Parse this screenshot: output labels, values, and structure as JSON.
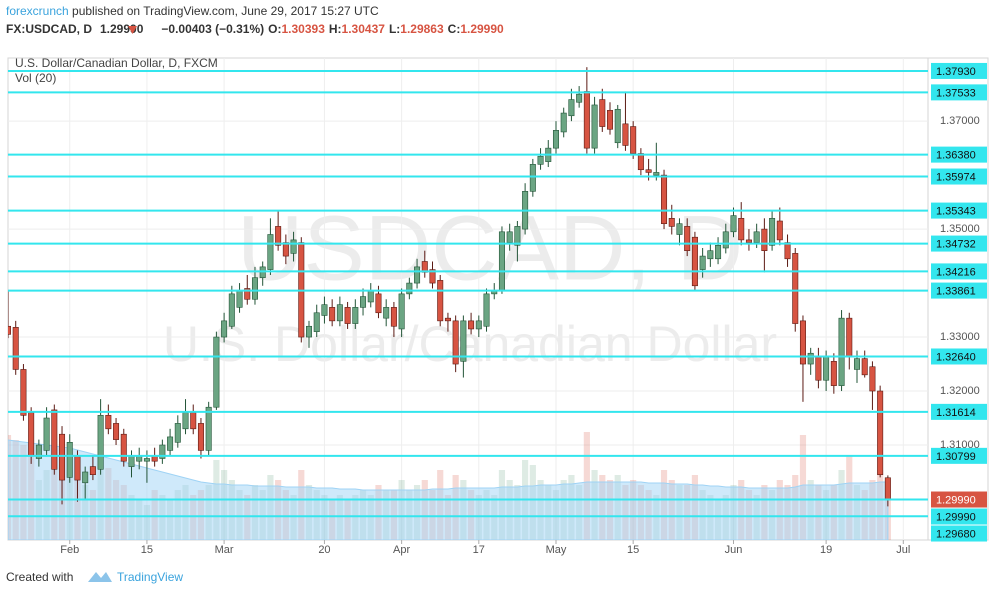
{
  "header": {
    "author": "forexcrunch",
    "published": " published on TradingView.com, June 29, 2017 15:27 UTC",
    "symbol": "FX:USDCAD, D",
    "last": "1.29990",
    "change": "−0.00403 (−0.31%)",
    "open": {
      "label": "O:",
      "value": "1.30393"
    },
    "high": {
      "label": "H:",
      "value": "1.30437"
    },
    "low": {
      "label": "L:",
      "value": "1.29863"
    },
    "close": {
      "label": "C:",
      "value": "1.29990"
    }
  },
  "chart_data": {
    "type": "candlestick",
    "title": "U.S. Dollar/Canadian Dollar, D, FXCM",
    "volume_title": "Vol (20)",
    "watermark": "USDCAD, D",
    "watermark_subtitle": "U.S. Dollar/Canadian Dollar",
    "ylim": [
      1.2924,
      1.3817
    ],
    "yticks": [
      {
        "value": 1.31,
        "label": "1.31000"
      },
      {
        "value": 1.32,
        "label": "1.32000"
      },
      {
        "value": 1.33,
        "label": "1.33000"
      },
      {
        "value": 1.35,
        "label": "1.35000"
      },
      {
        "value": 1.37,
        "label": "1.37000"
      }
    ],
    "xlim": [
      0,
      119.2
    ],
    "xticks": [
      {
        "value": 8,
        "label": "Feb"
      },
      {
        "value": 18,
        "label": "15"
      },
      {
        "value": 28,
        "label": "Mar"
      },
      {
        "value": 41,
        "label": "20"
      },
      {
        "value": 51,
        "label": "Apr"
      },
      {
        "value": 61,
        "label": "17"
      },
      {
        "value": 71,
        "label": "May"
      },
      {
        "value": 81,
        "label": "15"
      },
      {
        "value": 94,
        "label": "Jun"
      },
      {
        "value": 106,
        "label": "19"
      },
      {
        "value": 116,
        "label": "Jul"
      }
    ],
    "grid": true,
    "up_color": "#6ba583",
    "down_color": "#d75442",
    "level_color": "#33e6ee",
    "volume_ma_color": "#9fd3f5",
    "ohlc": [
      [
        1.332,
        1.3385,
        1.3298,
        1.3305
      ],
      [
        1.3318,
        1.333,
        1.323,
        1.324
      ],
      [
        1.324,
        1.325,
        1.3145,
        1.3155
      ],
      [
        1.316,
        1.317,
        1.3065,
        1.308
      ],
      [
        1.3075,
        1.311,
        1.306,
        1.31
      ],
      [
        1.309,
        1.317,
        1.308,
        1.315
      ],
      [
        1.3165,
        1.3175,
        1.3045,
        1.3055
      ],
      [
        1.312,
        1.3135,
        1.299,
        1.3035
      ],
      [
        1.304,
        1.312,
        1.303,
        1.3105
      ],
      [
        1.308,
        1.309,
        1.2995,
        1.3035
      ],
      [
        1.303,
        1.306,
        1.3,
        1.305
      ],
      [
        1.306,
        1.308,
        1.3035,
        1.3045
      ],
      [
        1.3055,
        1.3185,
        1.3045,
        1.3155
      ],
      [
        1.3155,
        1.3175,
        1.312,
        1.313
      ],
      [
        1.314,
        1.315,
        1.31,
        1.311
      ],
      [
        1.312,
        1.313,
        1.306,
        1.307
      ],
      [
        1.306,
        1.309,
        1.304,
        1.308
      ],
      [
        1.307,
        1.3095,
        1.3055,
        1.308
      ],
      [
        1.307,
        1.309,
        1.303,
        1.3075
      ],
      [
        1.308,
        1.3095,
        1.306,
        1.307
      ],
      [
        1.3075,
        1.311,
        1.3065,
        1.31
      ],
      [
        1.309,
        1.313,
        1.308,
        1.3115
      ],
      [
        1.3105,
        1.3155,
        1.3095,
        1.314
      ],
      [
        1.313,
        1.3185,
        1.312,
        1.316
      ],
      [
        1.316,
        1.3175,
        1.312,
        1.313
      ],
      [
        1.314,
        1.315,
        1.3075,
        1.309
      ],
      [
        1.309,
        1.318,
        1.308,
        1.317
      ],
      [
        1.317,
        1.331,
        1.3165,
        1.33
      ],
      [
        1.33,
        1.3345,
        1.329,
        1.333
      ],
      [
        1.332,
        1.3395,
        1.3315,
        1.338
      ],
      [
        1.3355,
        1.34,
        1.3345,
        1.3385
      ],
      [
        1.339,
        1.3415,
        1.336,
        1.337
      ],
      [
        1.337,
        1.343,
        1.336,
        1.341
      ],
      [
        1.341,
        1.344,
        1.3395,
        1.343
      ],
      [
        1.3425,
        1.352,
        1.3415,
        1.349
      ],
      [
        1.3505,
        1.3535,
        1.346,
        1.347
      ],
      [
        1.3475,
        1.349,
        1.3435,
        1.345
      ],
      [
        1.3455,
        1.3495,
        1.344,
        1.348
      ],
      [
        1.3475,
        1.3485,
        1.329,
        1.33
      ],
      [
        1.33,
        1.333,
        1.328,
        1.332
      ],
      [
        1.331,
        1.336,
        1.33,
        1.3345
      ],
      [
        1.334,
        1.3375,
        1.3325,
        1.336
      ],
      [
        1.3355,
        1.337,
        1.332,
        1.333
      ],
      [
        1.333,
        1.3375,
        1.332,
        1.336
      ],
      [
        1.3355,
        1.3365,
        1.3315,
        1.3325
      ],
      [
        1.3325,
        1.337,
        1.3315,
        1.3355
      ],
      [
        1.3355,
        1.339,
        1.334,
        1.3375
      ],
      [
        1.3365,
        1.34,
        1.3355,
        1.3385
      ],
      [
        1.338,
        1.3395,
        1.3335,
        1.3345
      ],
      [
        1.3335,
        1.337,
        1.332,
        1.3355
      ],
      [
        1.3355,
        1.3365,
        1.33,
        1.332
      ],
      [
        1.3315,
        1.339,
        1.33,
        1.338
      ],
      [
        1.338,
        1.341,
        1.337,
        1.34
      ],
      [
        1.34,
        1.3445,
        1.339,
        1.343
      ],
      [
        1.344,
        1.346,
        1.341,
        1.342
      ],
      [
        1.3425,
        1.344,
        1.339,
        1.34
      ],
      [
        1.3405,
        1.3415,
        1.332,
        1.333
      ],
      [
        1.3335,
        1.3345,
        1.331,
        1.333
      ],
      [
        1.333,
        1.334,
        1.3235,
        1.325
      ],
      [
        1.3255,
        1.334,
        1.3225,
        1.333
      ],
      [
        1.333,
        1.3345,
        1.3305,
        1.3315
      ],
      [
        1.3315,
        1.334,
        1.33,
        1.333
      ],
      [
        1.332,
        1.339,
        1.331,
        1.338
      ],
      [
        1.338,
        1.34,
        1.337,
        1.3385
      ],
      [
        1.3385,
        1.3505,
        1.338,
        1.3495
      ],
      [
        1.3475,
        1.351,
        1.346,
        1.3495
      ],
      [
        1.347,
        1.3515,
        1.344,
        1.3505
      ],
      [
        1.35,
        1.3585,
        1.349,
        1.357
      ],
      [
        1.357,
        1.363,
        1.356,
        1.362
      ],
      [
        1.362,
        1.365,
        1.361,
        1.3635
      ],
      [
        1.3625,
        1.3665,
        1.3615,
        1.365
      ],
      [
        1.365,
        1.37,
        1.364,
        1.3683
      ],
      [
        1.368,
        1.3725,
        1.367,
        1.3715
      ],
      [
        1.371,
        1.376,
        1.37,
        1.374
      ],
      [
        1.3735,
        1.3765,
        1.3725,
        1.375
      ],
      [
        1.3755,
        1.38,
        1.364,
        1.365
      ],
      [
        1.365,
        1.3745,
        1.364,
        1.373
      ],
      [
        1.374,
        1.376,
        1.368,
        1.369
      ],
      [
        1.372,
        1.3735,
        1.3675,
        1.3685
      ],
      [
        1.366,
        1.373,
        1.365,
        1.3722
      ],
      [
        1.3695,
        1.3755,
        1.3645,
        1.3655
      ],
      [
        1.369,
        1.37,
        1.363,
        1.364
      ],
      [
        1.364,
        1.365,
        1.36,
        1.361
      ],
      [
        1.361,
        1.363,
        1.359,
        1.3605
      ],
      [
        1.36,
        1.366,
        1.359,
        1.3605
      ],
      [
        1.36,
        1.361,
        1.35,
        1.351
      ],
      [
        1.352,
        1.3545,
        1.349,
        1.3505
      ],
      [
        1.349,
        1.352,
        1.347,
        1.351
      ],
      [
        1.3505,
        1.352,
        1.345,
        1.346
      ],
      [
        1.3485,
        1.3495,
        1.3385,
        1.3395
      ],
      [
        1.3425,
        1.3465,
        1.341,
        1.345
      ],
      [
        1.3445,
        1.3475,
        1.343,
        1.346
      ],
      [
        1.3445,
        1.3485,
        1.3435,
        1.347
      ],
      [
        1.3465,
        1.351,
        1.3455,
        1.3495
      ],
      [
        1.3495,
        1.354,
        1.3485,
        1.3525
      ],
      [
        1.352,
        1.355,
        1.347,
        1.348
      ],
      [
        1.348,
        1.35,
        1.346,
        1.3475
      ],
      [
        1.3475,
        1.351,
        1.3465,
        1.3495
      ],
      [
        1.35,
        1.352,
        1.342,
        1.346
      ],
      [
        1.347,
        1.3535,
        1.346,
        1.352
      ],
      [
        1.3515,
        1.354,
        1.347,
        1.348
      ],
      [
        1.3475,
        1.349,
        1.343,
        1.3445
      ],
      [
        1.3455,
        1.3465,
        1.331,
        1.3325
      ],
      [
        1.333,
        1.334,
        1.318,
        1.325
      ],
      [
        1.325,
        1.328,
        1.323,
        1.327
      ],
      [
        1.3265,
        1.328,
        1.3205,
        1.322
      ],
      [
        1.322,
        1.3275,
        1.32,
        1.3265
      ],
      [
        1.3255,
        1.327,
        1.3195,
        1.321
      ],
      [
        1.321,
        1.335,
        1.32,
        1.3335
      ],
      [
        1.3335,
        1.3345,
        1.324,
        1.3265
      ],
      [
        1.324,
        1.3275,
        1.3215,
        1.326
      ],
      [
        1.326,
        1.3275,
        1.3225,
        1.323
      ],
      [
        1.3245,
        1.3255,
        1.3165,
        1.32
      ],
      [
        1.32,
        1.321,
        1.304,
        1.3045
      ],
      [
        1.30393,
        1.30437,
        1.29863,
        1.2999
      ]
    ],
    "volume": [
      105,
      100,
      95,
      90,
      60,
      70,
      85,
      75,
      70,
      60,
      55,
      50,
      80,
      72,
      60,
      55,
      45,
      40,
      35,
      50,
      45,
      40,
      50,
      55,
      45,
      50,
      55,
      80,
      70,
      60,
      50,
      45,
      55,
      50,
      65,
      60,
      50,
      45,
      70,
      55,
      50,
      45,
      40,
      45,
      40,
      45,
      50,
      45,
      55,
      50,
      50,
      60,
      50,
      55,
      60,
      50,
      70,
      45,
      65,
      60,
      50,
      45,
      50,
      45,
      70,
      60,
      55,
      80,
      75,
      60,
      55,
      50,
      60,
      65,
      55,
      108,
      70,
      65,
      60,
      65,
      55,
      60,
      55,
      50,
      45,
      70,
      60,
      55,
      55,
      65,
      50,
      45,
      40,
      45,
      55,
      60,
      50,
      45,
      55,
      50,
      60,
      55,
      65,
      105,
      60,
      55,
      50,
      55,
      70,
      85,
      55,
      50,
      60,
      70,
      60
    ],
    "volume_ma": [
      100,
      99,
      98,
      97,
      96,
      95,
      94,
      93,
      92,
      90,
      88,
      86,
      84,
      82,
      80,
      78,
      76,
      74,
      72,
      70,
      68,
      66,
      64,
      62,
      60,
      58,
      57,
      56,
      56,
      55,
      55,
      55,
      54,
      54,
      54,
      54,
      53,
      53,
      53,
      53,
      52,
      52,
      52,
      51,
      51,
      51,
      50,
      50,
      50,
      50,
      50,
      50,
      50,
      50,
      50,
      51,
      51,
      51,
      52,
      52,
      52,
      52,
      52,
      52,
      53,
      53,
      53,
      54,
      54,
      55,
      55,
      55,
      56,
      56,
      57,
      58,
      58,
      58,
      58,
      58,
      58,
      58,
      58,
      57,
      57,
      57,
      56,
      56,
      56,
      55,
      55,
      54,
      54,
      53,
      53,
      53,
      52,
      52,
      52,
      52,
      52,
      52,
      53,
      55,
      55,
      55,
      55,
      55,
      56,
      57,
      57,
      57,
      57,
      58,
      58
    ],
    "levels": [
      {
        "value": 1.3793,
        "label": "1.37930"
      },
      {
        "value": 1.37533,
        "label": "1.37533"
      },
      {
        "value": 1.3638,
        "label": "1.36380"
      },
      {
        "value": 1.35974,
        "label": "1.35974"
      },
      {
        "value": 1.35343,
        "label": "1.35343"
      },
      {
        "value": 1.34732,
        "label": "1.34732"
      },
      {
        "value": 1.34216,
        "label": "1.34216"
      },
      {
        "value": 1.33861,
        "label": "1.33861"
      },
      {
        "value": 1.3264,
        "label": "1.32640"
      },
      {
        "value": 1.31614,
        "label": "1.31614"
      },
      {
        "value": 1.30799,
        "label": "1.30799"
      },
      {
        "value": 1.2999,
        "label": "1.29990"
      },
      {
        "value": 1.2968,
        "label": "1.29680"
      }
    ],
    "last_price": {
      "value": 1.2999,
      "label": "1.29990"
    }
  },
  "footer": {
    "created": "Created with",
    "brand": "TradingView"
  }
}
